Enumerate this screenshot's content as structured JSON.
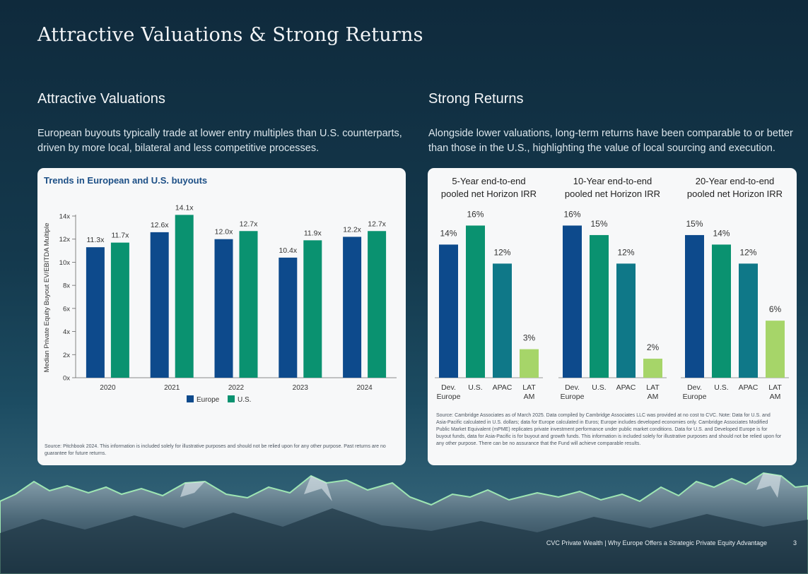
{
  "page": {
    "title": "Attractive Valuations & Strong Returns",
    "left_heading": "Attractive Valuations",
    "left_description": "European buyouts typically trade at lower entry multiples than U.S. counterparts, driven by more local, bilateral and less competitive processes.",
    "right_heading": "Strong Returns",
    "right_description": "Alongside lower valuations, long-term returns have been comparable to or better than those in the U.S., highlighting the value of local sourcing and execution.",
    "left_source": "Source: Pitchbook 2024. This information is included solely for illustrative purposes and should not be relied upon for any other purpose. Past returns are no guarantee for future returns.",
    "right_source": "Source: Cambridge Associates as of March 2025. Data compiled by Cambridge Associates LLC was provided at no cost to CVC. Note: Data for U.S. and Asia-Pacific calculated in U.S. dollars; data for Europe calculated in Euros; Europe includes developed economies only. Cambridge Associates Modified Public Market Equivalent (mPME) replicates private investment performance under public market conditions. Data for U.S. and Developed Europe is for buyout funds, data for Asia-Pacific is for buyout and growth funds. This information is included solely for illustrative purposes and should not be relied upon for any other purpose. There can be no assurance that the Fund will achieve comparable results.",
    "footer": "CVC Private Wealth | Why Europe Offers a Strategic Private Equity Advantage",
    "page_number": "3"
  },
  "colors": {
    "europe": "#0d4a8c",
    "us": "#0a9270",
    "apac": "#0f7888",
    "latam": "#a6d569"
  },
  "chart_data": [
    {
      "type": "bar",
      "title": "Trends in European and U.S. buyouts",
      "ylabel": "Median Private Equity Buyout EV/EBITDA Multiple",
      "xlabel": "",
      "ylim": [
        0,
        14
      ],
      "yticks": [
        "0x",
        "2x",
        "4x",
        "6x",
        "8x",
        "10x",
        "12x",
        "14x"
      ],
      "categories": [
        "2020",
        "2021",
        "2022",
        "2023",
        "2024"
      ],
      "series": [
        {
          "name": "Europe",
          "values": [
            11.3,
            12.6,
            12.0,
            10.4,
            12.2
          ],
          "labels": [
            "11.3x",
            "12.6x",
            "12.0x",
            "10.4x",
            "12.2x"
          ]
        },
        {
          "name": "U.S.",
          "values": [
            11.7,
            14.1,
            12.7,
            11.9,
            12.7
          ],
          "labels": [
            "11.7x",
            "14.1x",
            "12.7x",
            "11.9x",
            "12.7x"
          ]
        }
      ],
      "legend": "bottom-center"
    },
    {
      "type": "bar",
      "title": [
        "5-Year end-to-end",
        "pooled net Horizon IRR"
      ],
      "categories": [
        [
          "Dev.",
          "Europe"
        ],
        [
          "U.S."
        ],
        [
          "APAC"
        ],
        [
          "LAT",
          "AM"
        ]
      ],
      "values": [
        14,
        16,
        12,
        3
      ],
      "labels": [
        "14%",
        "16%",
        "12%",
        "3%"
      ],
      "ylim": [
        0,
        17
      ]
    },
    {
      "type": "bar",
      "title": [
        "10-Year end-to-end",
        "pooled net Horizon IRR"
      ],
      "categories": [
        [
          "Dev.",
          "Europe"
        ],
        [
          "U.S."
        ],
        [
          "APAC"
        ],
        [
          "LAT",
          "AM"
        ]
      ],
      "values": [
        16,
        15,
        12,
        2
      ],
      "labels": [
        "16%",
        "15%",
        "12%",
        "2%"
      ],
      "ylim": [
        0,
        17
      ]
    },
    {
      "type": "bar",
      "title": [
        "20-Year end-to-end",
        "pooled net Horizon IRR"
      ],
      "categories": [
        [
          "Dev.",
          "Europe"
        ],
        [
          "U.S."
        ],
        [
          "APAC"
        ],
        [
          "LAT",
          "AM"
        ]
      ],
      "values": [
        15,
        14,
        12,
        6
      ],
      "labels": [
        "15%",
        "14%",
        "12%",
        "6%"
      ],
      "ylim": [
        0,
        17
      ]
    }
  ]
}
